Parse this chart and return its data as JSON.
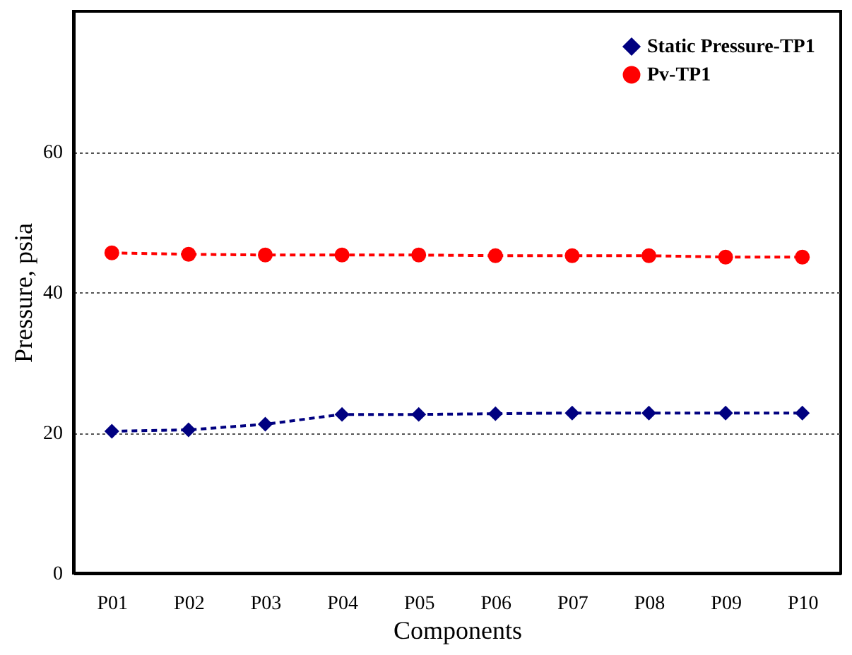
{
  "chart_data": {
    "type": "line",
    "xlabel": "Components",
    "ylabel": "Pressure, psia",
    "categories": [
      "P01",
      "P02",
      "P03",
      "P04",
      "P05",
      "P06",
      "P07",
      "P08",
      "P09",
      "P10"
    ],
    "series": [
      {
        "name": "Static Pressure-TP1",
        "color": "#000080",
        "marker": "diamond",
        "values": [
          20.2,
          20.4,
          21.2,
          22.6,
          22.6,
          22.7,
          22.8,
          22.8,
          22.8,
          22.8
        ]
      },
      {
        "name": "Pv-TP1",
        "color": "#ff0000",
        "marker": "circle",
        "values": [
          45.6,
          45.4,
          45.3,
          45.3,
          45.3,
          45.2,
          45.2,
          45.2,
          45.0,
          45.0
        ]
      }
    ],
    "ylim": [
      0,
      80
    ],
    "yticks": [
      0,
      20,
      40,
      60
    ],
    "grid": "y",
    "legend": "top right",
    "line_style": "dashed"
  }
}
